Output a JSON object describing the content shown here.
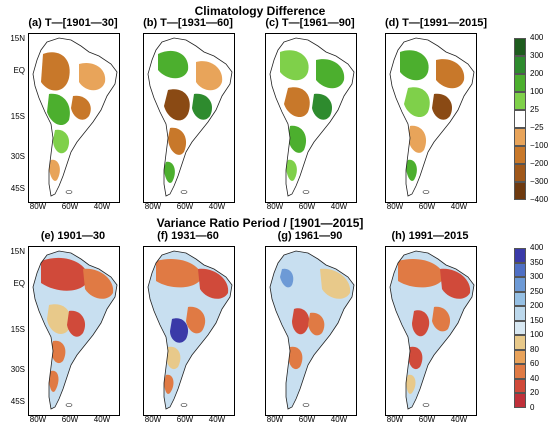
{
  "top_title": "Climatology Difference",
  "bottom_title": "Variance Ratio Period / [1901—2015]",
  "top_panels": [
    {
      "title": "(a) T—[1901—30]"
    },
    {
      "title": "(b) T—[1931—60]"
    },
    {
      "title": "(c) T—[1961—90]"
    },
    {
      "title": "(d) T—[1991—2015]"
    }
  ],
  "bottom_panels": [
    {
      "title": "(e) 1901—30"
    },
    {
      "title": "(f) 1931—60"
    },
    {
      "title": "(g) 1961—90"
    },
    {
      "title": "(h) 1991—2015"
    }
  ],
  "lat_labels": [
    "15N",
    "EQ",
    "15S",
    "30S",
    "45S"
  ],
  "lon_labels": [
    "80W",
    "60W",
    "40W"
  ],
  "top_colorbar": {
    "ticks": [
      "400",
      "300",
      "200",
      "100",
      "25",
      "−25",
      "−100",
      "−200",
      "−300",
      "−400"
    ],
    "colors": [
      "#1e5c1e",
      "#2e8b2e",
      "#4caf2e",
      "#7fd04a",
      "#ffffff",
      "#e8a45a",
      "#c8782a",
      "#a0581a",
      "#6e3a10"
    ]
  },
  "bottom_colorbar": {
    "ticks": [
      "400",
      "350",
      "300",
      "250",
      "200",
      "150",
      "100",
      "80",
      "60",
      "40",
      "20",
      "0"
    ],
    "colors": [
      "#3a3aa8",
      "#4f6fc4",
      "#6d9ad6",
      "#96c0e4",
      "#bcd8ec",
      "#d8e8f2",
      "#e8c98a",
      "#e8a25a",
      "#e07a44",
      "#d04a3a",
      "#c0303a"
    ]
  },
  "fill_colors": {
    "green_dark": "#2e8b2e",
    "green": "#4caf2e",
    "green_light": "#7fd04a",
    "brown": "#c8782a",
    "brown_light": "#e8a45a",
    "brown_dark": "#8a4a14",
    "blue_light": "#c8dff0",
    "blue": "#6d9ad6",
    "blue_dark": "#3a3aa8",
    "red": "#d04a3a",
    "orange": "#e07a44",
    "tan": "#e8c98a"
  }
}
